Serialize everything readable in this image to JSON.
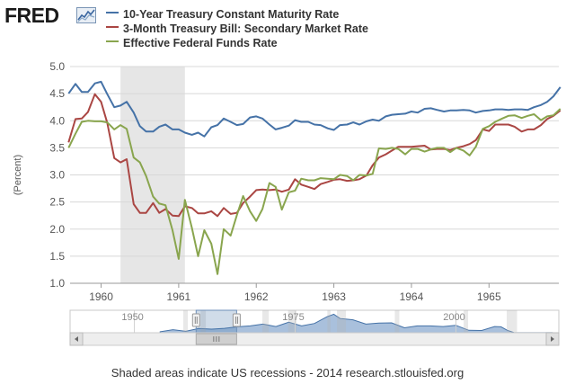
{
  "brand": {
    "logo_text": "FRED",
    "logo_icon": "chart-line-icon"
  },
  "footer": {
    "note": "Shaded areas indicate US recessions - 2014 research.stlouisfed.org"
  },
  "navigator": {
    "labels": [
      "1950",
      "1975",
      "2000"
    ],
    "recession_ranges": [
      [
        1957.6,
        1958.3
      ],
      [
        1960.3,
        1961.1
      ],
      [
        1969.9,
        1970.9
      ],
      [
        1973.9,
        1975.2
      ],
      [
        1980.0,
        1980.5
      ],
      [
        1981.5,
        1982.9
      ],
      [
        1990.5,
        1991.2
      ],
      [
        2001.2,
        2001.9
      ],
      [
        2007.9,
        2009.5
      ]
    ]
  },
  "chart_data": {
    "type": "line",
    "title": "",
    "xlabel": "",
    "ylabel": "(Percent)",
    "xlim": [
      1959.6,
      1965.9
    ],
    "ylim": [
      1.0,
      5.0
    ],
    "yticks": [
      "1.0",
      "1.5",
      "2.0",
      "2.5",
      "3.0",
      "3.5",
      "4.0",
      "4.5",
      "5.0"
    ],
    "xticks": [
      {
        "value": 1960.0,
        "label": "1960"
      },
      {
        "value": 1961.0,
        "label": "1961"
      },
      {
        "value": 1962.0,
        "label": "1962"
      },
      {
        "value": 1963.0,
        "label": "1963"
      },
      {
        "value": 1964.0,
        "label": "1964"
      },
      {
        "value": 1965.0,
        "label": "1965"
      }
    ],
    "grid": true,
    "legend_position": "top",
    "recessions": [
      [
        1960.25,
        1961.08
      ]
    ],
    "series": [
      {
        "name": "10-Year Treasury Constant Maturity Rate",
        "color": "#4572a7",
        "points": [
          [
            1959.58,
            4.5
          ],
          [
            1959.67,
            4.68
          ],
          [
            1959.75,
            4.53
          ],
          [
            1959.83,
            4.53
          ],
          [
            1959.92,
            4.69
          ],
          [
            1960.0,
            4.72
          ],
          [
            1960.08,
            4.49
          ],
          [
            1960.17,
            4.25
          ],
          [
            1960.25,
            4.28
          ],
          [
            1960.33,
            4.35
          ],
          [
            1960.42,
            4.15
          ],
          [
            1960.5,
            3.9
          ],
          [
            1960.58,
            3.8
          ],
          [
            1960.67,
            3.8
          ],
          [
            1960.75,
            3.89
          ],
          [
            1960.83,
            3.93
          ],
          [
            1960.92,
            3.84
          ],
          [
            1961.0,
            3.84
          ],
          [
            1961.08,
            3.78
          ],
          [
            1961.17,
            3.74
          ],
          [
            1961.25,
            3.78
          ],
          [
            1961.33,
            3.71
          ],
          [
            1961.42,
            3.88
          ],
          [
            1961.5,
            3.92
          ],
          [
            1961.58,
            4.04
          ],
          [
            1961.67,
            3.98
          ],
          [
            1961.75,
            3.92
          ],
          [
            1961.83,
            3.94
          ],
          [
            1961.92,
            4.06
          ],
          [
            1962.0,
            4.08
          ],
          [
            1962.08,
            4.04
          ],
          [
            1962.17,
            3.93
          ],
          [
            1962.25,
            3.84
          ],
          [
            1962.33,
            3.87
          ],
          [
            1962.42,
            3.91
          ],
          [
            1962.5,
            4.01
          ],
          [
            1962.58,
            3.98
          ],
          [
            1962.67,
            3.98
          ],
          [
            1962.75,
            3.93
          ],
          [
            1962.83,
            3.92
          ],
          [
            1962.92,
            3.86
          ],
          [
            1963.0,
            3.83
          ],
          [
            1963.08,
            3.92
          ],
          [
            1963.17,
            3.93
          ],
          [
            1963.25,
            3.97
          ],
          [
            1963.33,
            3.93
          ],
          [
            1963.42,
            3.99
          ],
          [
            1963.5,
            4.02
          ],
          [
            1963.58,
            4.0
          ],
          [
            1963.67,
            4.08
          ],
          [
            1963.75,
            4.11
          ],
          [
            1963.83,
            4.12
          ],
          [
            1963.92,
            4.13
          ],
          [
            1964.0,
            4.17
          ],
          [
            1964.08,
            4.15
          ],
          [
            1964.17,
            4.22
          ],
          [
            1964.25,
            4.23
          ],
          [
            1964.33,
            4.2
          ],
          [
            1964.42,
            4.17
          ],
          [
            1964.5,
            4.19
          ],
          [
            1964.58,
            4.19
          ],
          [
            1964.67,
            4.2
          ],
          [
            1964.75,
            4.19
          ],
          [
            1964.83,
            4.15
          ],
          [
            1964.92,
            4.18
          ],
          [
            1965.0,
            4.19
          ],
          [
            1965.08,
            4.21
          ],
          [
            1965.17,
            4.21
          ],
          [
            1965.25,
            4.2
          ],
          [
            1965.33,
            4.21
          ],
          [
            1965.42,
            4.21
          ],
          [
            1965.5,
            4.2
          ],
          [
            1965.58,
            4.25
          ],
          [
            1965.67,
            4.29
          ],
          [
            1965.75,
            4.35
          ],
          [
            1965.83,
            4.45
          ],
          [
            1965.92,
            4.62
          ]
        ]
      },
      {
        "name": "3-Month Treasury Bill: Secondary Market Rate",
        "color": "#aa4643",
        "points": [
          [
            1959.58,
            3.6
          ],
          [
            1959.67,
            4.03
          ],
          [
            1959.75,
            4.04
          ],
          [
            1959.83,
            4.16
          ],
          [
            1959.92,
            4.49
          ],
          [
            1960.0,
            4.35
          ],
          [
            1960.08,
            3.96
          ],
          [
            1960.17,
            3.31
          ],
          [
            1960.25,
            3.23
          ],
          [
            1960.33,
            3.29
          ],
          [
            1960.42,
            2.46
          ],
          [
            1960.5,
            2.3
          ],
          [
            1960.58,
            2.3
          ],
          [
            1960.67,
            2.48
          ],
          [
            1960.75,
            2.3
          ],
          [
            1960.83,
            2.37
          ],
          [
            1960.92,
            2.25
          ],
          [
            1961.0,
            2.24
          ],
          [
            1961.08,
            2.42
          ],
          [
            1961.17,
            2.39
          ],
          [
            1961.25,
            2.29
          ],
          [
            1961.33,
            2.29
          ],
          [
            1961.42,
            2.33
          ],
          [
            1961.5,
            2.24
          ],
          [
            1961.58,
            2.39
          ],
          [
            1961.67,
            2.28
          ],
          [
            1961.75,
            2.3
          ],
          [
            1961.83,
            2.48
          ],
          [
            1961.92,
            2.6
          ],
          [
            1962.0,
            2.72
          ],
          [
            1962.08,
            2.73
          ],
          [
            1962.17,
            2.72
          ],
          [
            1962.25,
            2.73
          ],
          [
            1962.33,
            2.69
          ],
          [
            1962.42,
            2.73
          ],
          [
            1962.5,
            2.92
          ],
          [
            1962.58,
            2.82
          ],
          [
            1962.67,
            2.78
          ],
          [
            1962.75,
            2.74
          ],
          [
            1962.83,
            2.83
          ],
          [
            1962.92,
            2.87
          ],
          [
            1963.0,
            2.91
          ],
          [
            1963.08,
            2.92
          ],
          [
            1963.17,
            2.89
          ],
          [
            1963.25,
            2.9
          ],
          [
            1963.33,
            2.92
          ],
          [
            1963.42,
            2.99
          ],
          [
            1963.5,
            3.18
          ],
          [
            1963.58,
            3.32
          ],
          [
            1963.67,
            3.38
          ],
          [
            1963.75,
            3.45
          ],
          [
            1963.83,
            3.52
          ],
          [
            1963.92,
            3.52
          ],
          [
            1964.0,
            3.52
          ],
          [
            1964.08,
            3.53
          ],
          [
            1964.17,
            3.54
          ],
          [
            1964.25,
            3.47
          ],
          [
            1964.33,
            3.48
          ],
          [
            1964.42,
            3.48
          ],
          [
            1964.5,
            3.46
          ],
          [
            1964.58,
            3.5
          ],
          [
            1964.67,
            3.53
          ],
          [
            1964.75,
            3.57
          ],
          [
            1964.83,
            3.64
          ],
          [
            1964.92,
            3.84
          ],
          [
            1965.0,
            3.81
          ],
          [
            1965.08,
            3.93
          ],
          [
            1965.17,
            3.93
          ],
          [
            1965.25,
            3.93
          ],
          [
            1965.33,
            3.89
          ],
          [
            1965.42,
            3.8
          ],
          [
            1965.5,
            3.84
          ],
          [
            1965.58,
            3.84
          ],
          [
            1965.67,
            3.92
          ],
          [
            1965.75,
            4.03
          ],
          [
            1965.83,
            4.09
          ],
          [
            1965.92,
            4.19
          ]
        ]
      },
      {
        "name": "Effective Federal Funds Rate",
        "color": "#89a54e",
        "points": [
          [
            1959.58,
            3.5
          ],
          [
            1959.67,
            3.76
          ],
          [
            1959.75,
            3.98
          ],
          [
            1959.83,
            4.0
          ],
          [
            1959.92,
            3.99
          ],
          [
            1960.0,
            3.99
          ],
          [
            1960.08,
            3.97
          ],
          [
            1960.17,
            3.84
          ],
          [
            1960.25,
            3.92
          ],
          [
            1960.33,
            3.85
          ],
          [
            1960.42,
            3.32
          ],
          [
            1960.5,
            3.23
          ],
          [
            1960.58,
            2.98
          ],
          [
            1960.67,
            2.6
          ],
          [
            1960.75,
            2.47
          ],
          [
            1960.83,
            2.44
          ],
          [
            1960.92,
            1.98
          ],
          [
            1961.0,
            1.45
          ],
          [
            1961.08,
            2.54
          ],
          [
            1961.17,
            2.02
          ],
          [
            1961.25,
            1.5
          ],
          [
            1961.33,
            1.98
          ],
          [
            1961.42,
            1.73
          ],
          [
            1961.5,
            1.17
          ],
          [
            1961.58,
            2.0
          ],
          [
            1961.67,
            1.88
          ],
          [
            1961.75,
            2.26
          ],
          [
            1961.83,
            2.61
          ],
          [
            1961.92,
            2.33
          ],
          [
            1962.0,
            2.15
          ],
          [
            1962.08,
            2.37
          ],
          [
            1962.17,
            2.85
          ],
          [
            1962.25,
            2.78
          ],
          [
            1962.33,
            2.36
          ],
          [
            1962.42,
            2.68
          ],
          [
            1962.5,
            2.71
          ],
          [
            1962.58,
            2.93
          ],
          [
            1962.67,
            2.9
          ],
          [
            1962.75,
            2.9
          ],
          [
            1962.83,
            2.94
          ],
          [
            1962.92,
            2.93
          ],
          [
            1963.0,
            2.92
          ],
          [
            1963.08,
            3.0
          ],
          [
            1963.17,
            2.98
          ],
          [
            1963.25,
            2.9
          ],
          [
            1963.33,
            3.0
          ],
          [
            1963.42,
            2.99
          ],
          [
            1963.5,
            3.02
          ],
          [
            1963.58,
            3.49
          ],
          [
            1963.67,
            3.48
          ],
          [
            1963.75,
            3.5
          ],
          [
            1963.83,
            3.48
          ],
          [
            1963.92,
            3.38
          ],
          [
            1964.0,
            3.48
          ],
          [
            1964.08,
            3.48
          ],
          [
            1964.17,
            3.43
          ],
          [
            1964.25,
            3.47
          ],
          [
            1964.33,
            3.5
          ],
          [
            1964.42,
            3.5
          ],
          [
            1964.5,
            3.42
          ],
          [
            1964.58,
            3.5
          ],
          [
            1964.67,
            3.45
          ],
          [
            1964.75,
            3.36
          ],
          [
            1964.83,
            3.52
          ],
          [
            1964.92,
            3.85
          ],
          [
            1965.0,
            3.9
          ],
          [
            1965.08,
            3.98
          ],
          [
            1965.17,
            4.04
          ],
          [
            1965.25,
            4.09
          ],
          [
            1965.33,
            4.1
          ],
          [
            1965.42,
            4.05
          ],
          [
            1965.5,
            4.09
          ],
          [
            1965.58,
            4.12
          ],
          [
            1965.67,
            4.01
          ],
          [
            1965.75,
            4.08
          ],
          [
            1965.83,
            4.1
          ],
          [
            1965.92,
            4.22
          ]
        ]
      }
    ]
  }
}
